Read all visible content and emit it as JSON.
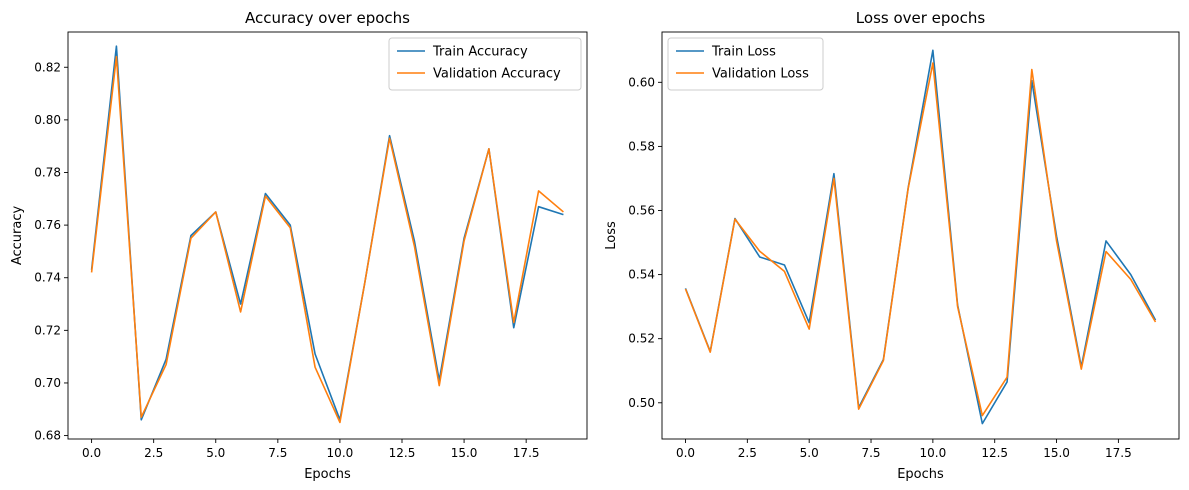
{
  "chart_data": [
    {
      "type": "line",
      "title": "Accuracy over epochs",
      "xlabel": "Epochs",
      "ylabel": "Accuracy",
      "xlim": [
        -0.95,
        19.95
      ],
      "ylim": [
        0.6787,
        0.8334
      ],
      "xticks": [
        "0.0",
        "2.5",
        "5.0",
        "7.5",
        "10.0",
        "12.5",
        "15.0",
        "17.5"
      ],
      "yticks": [
        "0.68",
        "0.70",
        "0.72",
        "0.74",
        "0.76",
        "0.78",
        "0.80",
        "0.82"
      ],
      "legend_position": "top-right",
      "x": [
        0,
        1,
        2,
        3,
        4,
        5,
        6,
        7,
        8,
        9,
        10,
        11,
        12,
        13,
        14,
        15,
        16,
        17,
        18,
        19
      ],
      "series": [
        {
          "name": "Train Accuracy",
          "color": "#1f77b4",
          "values": [
            0.743,
            0.828,
            0.686,
            0.709,
            0.756,
            0.765,
            0.73,
            0.772,
            0.76,
            0.711,
            0.686,
            0.738,
            0.794,
            0.754,
            0.701,
            0.755,
            0.789,
            0.721,
            0.767,
            0.764
          ]
        },
        {
          "name": "Validation Accuracy",
          "color": "#ff7f0e",
          "values": [
            0.742,
            0.824,
            0.687,
            0.707,
            0.755,
            0.765,
            0.727,
            0.771,
            0.759,
            0.706,
            0.685,
            0.738,
            0.793,
            0.752,
            0.699,
            0.754,
            0.789,
            0.723,
            0.773,
            0.765
          ]
        }
      ]
    },
    {
      "type": "line",
      "title": "Loss over epochs",
      "xlabel": "Epochs",
      "ylabel": "Loss",
      "xlim": [
        -0.95,
        19.95
      ],
      "ylim": [
        0.4887,
        0.6157
      ],
      "xticks": [
        "0.0",
        "2.5",
        "5.0",
        "7.5",
        "10.0",
        "12.5",
        "15.0",
        "17.5"
      ],
      "yticks": [
        "0.50",
        "0.52",
        "0.54",
        "0.56",
        "0.58",
        "0.60"
      ],
      "legend_position": "top-left",
      "x": [
        0,
        1,
        2,
        3,
        4,
        5,
        6,
        7,
        8,
        9,
        10,
        11,
        12,
        13,
        14,
        15,
        16,
        17,
        18,
        19
      ],
      "series": [
        {
          "name": "Train Loss",
          "color": "#1f77b4",
          "values": [
            0.5357,
            0.516,
            0.5575,
            0.5455,
            0.543,
            0.525,
            0.5715,
            0.4985,
            0.5135,
            0.567,
            0.61,
            0.5305,
            0.4935,
            0.5065,
            0.6005,
            0.552,
            0.5112,
            0.5505,
            0.54,
            0.5258
          ]
        },
        {
          "name": "Validation Loss",
          "color": "#ff7f0e",
          "values": [
            0.5355,
            0.5158,
            0.5573,
            0.5473,
            0.541,
            0.523,
            0.57,
            0.498,
            0.5132,
            0.5668,
            0.606,
            0.53,
            0.496,
            0.508,
            0.604,
            0.5505,
            0.5105,
            0.5472,
            0.5385,
            0.5252
          ]
        }
      ]
    }
  ]
}
